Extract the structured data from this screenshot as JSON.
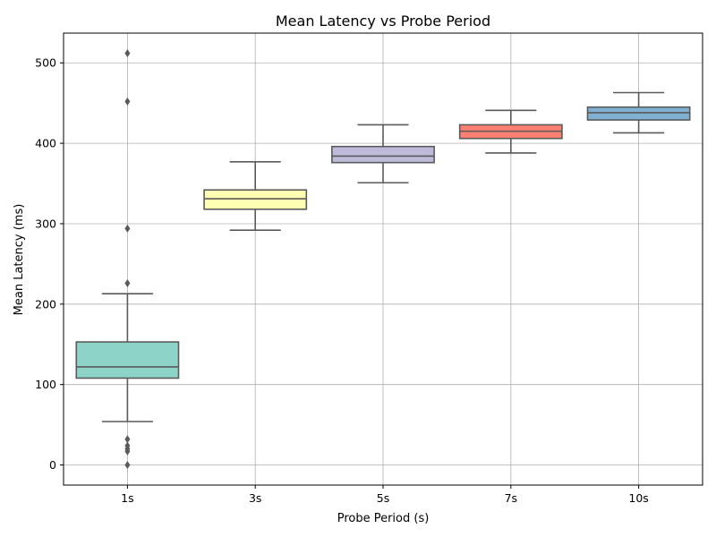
{
  "chart_data": {
    "type": "box",
    "title": "Mean Latency vs Probe Period",
    "xlabel": "Probe Period (s)",
    "ylabel": "Mean Latency (ms)",
    "ylim": [
      -25,
      537
    ],
    "yticks": [
      0,
      100,
      200,
      300,
      400,
      500
    ],
    "grid": true,
    "categories": [
      "1s",
      "3s",
      "5s",
      "7s",
      "10s"
    ],
    "boxes": [
      {
        "category": "1s",
        "whisker_low": 54,
        "q1": 108,
        "median": 122,
        "q3": 153,
        "whisker_high": 213,
        "fliers": [
          0,
          17,
          20,
          24,
          32,
          226,
          294,
          452,
          512
        ],
        "color": "#8dd3c7"
      },
      {
        "category": "3s",
        "whisker_low": 292,
        "q1": 318,
        "median": 331,
        "q3": 342,
        "whisker_high": 377,
        "fliers": [],
        "color": "#ffffb3"
      },
      {
        "category": "5s",
        "whisker_low": 351,
        "q1": 376,
        "median": 384,
        "q3": 396,
        "whisker_high": 423,
        "fliers": [],
        "color": "#bebada"
      },
      {
        "category": "7s",
        "whisker_low": 388,
        "q1": 406,
        "median": 415,
        "q3": 423,
        "whisker_high": 441,
        "fliers": [],
        "color": "#fb8072"
      },
      {
        "category": "10s",
        "whisker_low": 413,
        "q1": 429,
        "median": 438,
        "q3": 445,
        "whisker_high": 463,
        "fliers": [],
        "color": "#80b1d3"
      }
    ]
  }
}
